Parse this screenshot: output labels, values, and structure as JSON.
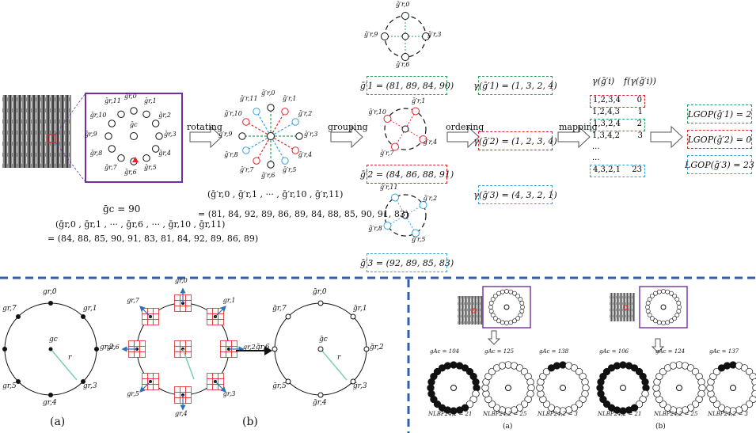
{
  "colors": {
    "purple": "#7030a0",
    "green": "#2ca05a",
    "red": "#e0262b",
    "blue": "#3aa3dc",
    "dashblue": "#2f5fb5",
    "teal": "#7fd0b8"
  },
  "top": {
    "gc_eq": "ḡc = 90",
    "seq_head": "(ḡr,0 , ḡr,1 , ··· , ḡr,6 , ··· , ḡr,10 , ḡr,11)",
    "seq_vals": "= (84, 88, 85, 90, 91, 83, 81, 84, 92, 89, 86, 89)",
    "rotating": "rotating",
    "grouping": "grouping",
    "ordering": "ordering",
    "mapping": "mapping",
    "rot_head": "(ḡ′r,0 , ḡ′r,1 , ··· , ḡ′r,10 , ḡ′r,11)",
    "rot_vals": "= (81, 84, 92, 89, 86, 89, 84, 88, 85, 90, 91, 83)",
    "g1": "ḡ′1 = (81, 89, 84, 90)",
    "g2": "ḡ′2 = (84, 86, 88, 91)",
    "g3": "ḡ′3 = (92, 89, 85, 83)",
    "gamma1": "γ(ḡ′1) = (1, 3, 2, 4)",
    "gamma2": "γ(ḡ′2) = (1, 2, 3, 4)",
    "gamma3": "γ(ḡ′3) = (4, 3, 2, 1)",
    "map_head1": "γ(ḡ′i)",
    "map_head2": "f(γ(ḡ′i))",
    "map_rows": [
      [
        "1,2,3,4",
        "0"
      ],
      [
        "1,2,4,3",
        "1"
      ],
      [
        "1,3,2,4",
        "2"
      ],
      [
        "1,3,4,2",
        "3"
      ],
      [
        "...",
        ""
      ],
      [
        "...",
        ""
      ],
      [
        "4,3,2,1",
        "23"
      ]
    ],
    "lgop1": "LGOP(ḡ′1) = 2",
    "lgop2": "LGOP(ḡ′2) = 0",
    "lgop3": "LGOP(ḡ′3) = 23",
    "ring_labels": [
      "ḡr,0",
      "ḡr,1",
      "ḡr,2",
      "ḡr,3",
      "ḡr,4",
      "ḡr,5",
      "ḡr,6",
      "ḡr,7",
      "ḡr,8",
      "ḡr,9",
      "ḡr,10",
      "ḡr,11"
    ],
    "center_label": "ḡc",
    "rot_labels": [
      "ḡ′r,0",
      "ḡ′r,1",
      "ḡ′r,2",
      "ḡ′r,3",
      "ḡ′r,4",
      "ḡ′r,5",
      "ḡ′r,6",
      "ḡ′r,7",
      "ḡ′r,8",
      "ḡ′r,9",
      "ḡ′r,10",
      "ḡ′r,11"
    ]
  },
  "bottom_left": {
    "a_labels": [
      "gr,0",
      "gr,1",
      "gr,2",
      "gr,3",
      "gr,4",
      "gr,5",
      "gr,6",
      "gr,7"
    ],
    "b_out_labels": [
      "ḡr,0",
      "ḡr,1",
      "ḡr,2",
      "ḡr,3",
      "ḡr,4",
      "ḡr,5",
      "ḡr,6",
      "ḡr,7"
    ],
    "center_a": "gc",
    "center_b": "ḡc",
    "radius": "r",
    "cap_a": "(a)",
    "cap_b": "(b)"
  },
  "bottom_right": {
    "left_vals": [
      "gAc = 104",
      "gAc = 125",
      "gAc = 138"
    ],
    "right_vals": [
      "gAc = 106",
      "gAc = 124",
      "gAc = 137"
    ],
    "left_nlbp": [
      "NLBP24,2 = 21",
      "NLBP24,2 = 25",
      "NLBP24,2 = 3"
    ],
    "right_nlbp": [
      "NLBP24,2 = 21",
      "NLBP24,2 = 25",
      "NLBP24,2 = 3"
    ],
    "cap_a": "(a)",
    "cap_b": "(b)"
  }
}
